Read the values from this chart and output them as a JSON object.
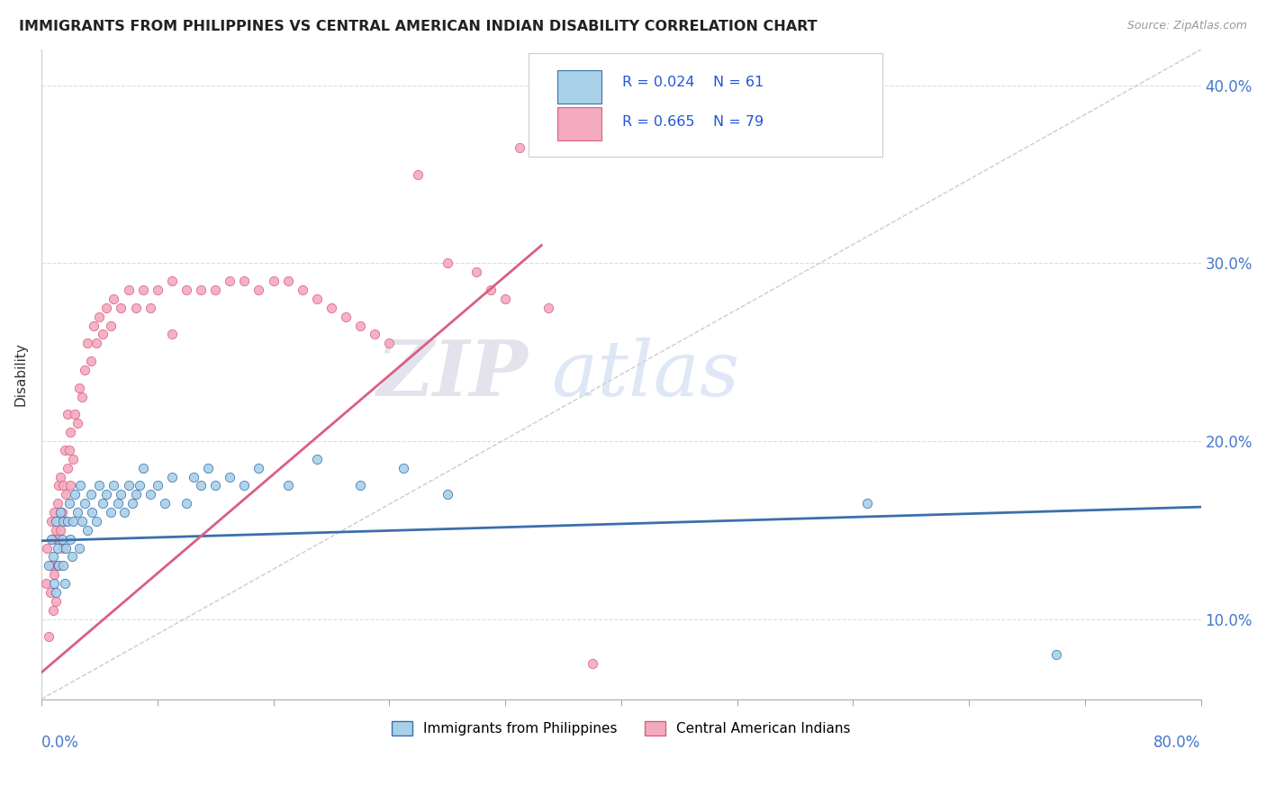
{
  "title": "IMMIGRANTS FROM PHILIPPINES VS CENTRAL AMERICAN INDIAN DISABILITY CORRELATION CHART",
  "source": "Source: ZipAtlas.com",
  "ylabel": "Disability",
  "yticks": [
    0.1,
    0.2,
    0.3,
    0.4
  ],
  "ytick_labels": [
    "10.0%",
    "20.0%",
    "30.0%",
    "40.0%"
  ],
  "xrange": [
    0.0,
    0.8
  ],
  "yrange": [
    0.055,
    0.42
  ],
  "r_philippines": 0.024,
  "n_philippines": 61,
  "r_central": 0.665,
  "n_central": 79,
  "color_philippines": "#A8D0E8",
  "color_central": "#F4AABE",
  "color_philippines_line": "#3B6FAB",
  "color_central_line": "#D95F82",
  "watermark_zip": "ZIP",
  "watermark_atlas": "atlas",
  "legend_label_philippines": "Immigrants from Philippines",
  "legend_label_central": "Central American Indians",
  "phil_trend": [
    0.0,
    0.144,
    0.8,
    0.163
  ],
  "cent_trend": [
    0.0,
    0.07,
    0.345,
    0.31
  ],
  "diag_line": [
    0.0,
    0.055,
    0.8,
    0.42
  ],
  "philippines_x": [
    0.005,
    0.007,
    0.008,
    0.009,
    0.01,
    0.01,
    0.011,
    0.012,
    0.013,
    0.014,
    0.015,
    0.015,
    0.016,
    0.017,
    0.018,
    0.019,
    0.02,
    0.021,
    0.022,
    0.023,
    0.025,
    0.026,
    0.027,
    0.028,
    0.03,
    0.032,
    0.034,
    0.035,
    0.038,
    0.04,
    0.042,
    0.045,
    0.048,
    0.05,
    0.053,
    0.055,
    0.057,
    0.06,
    0.063,
    0.065,
    0.068,
    0.07,
    0.075,
    0.08,
    0.085,
    0.09,
    0.1,
    0.105,
    0.11,
    0.115,
    0.12,
    0.13,
    0.14,
    0.15,
    0.17,
    0.19,
    0.22,
    0.25,
    0.28,
    0.57,
    0.7
  ],
  "philippines_y": [
    0.13,
    0.145,
    0.135,
    0.12,
    0.115,
    0.155,
    0.14,
    0.13,
    0.16,
    0.145,
    0.13,
    0.155,
    0.12,
    0.14,
    0.155,
    0.165,
    0.145,
    0.135,
    0.155,
    0.17,
    0.16,
    0.14,
    0.175,
    0.155,
    0.165,
    0.15,
    0.17,
    0.16,
    0.155,
    0.175,
    0.165,
    0.17,
    0.16,
    0.175,
    0.165,
    0.17,
    0.16,
    0.175,
    0.165,
    0.17,
    0.175,
    0.185,
    0.17,
    0.175,
    0.165,
    0.18,
    0.165,
    0.18,
    0.175,
    0.185,
    0.175,
    0.18,
    0.175,
    0.185,
    0.175,
    0.19,
    0.175,
    0.185,
    0.17,
    0.165,
    0.08
  ],
  "central_x": [
    0.003,
    0.004,
    0.005,
    0.006,
    0.007,
    0.007,
    0.008,
    0.008,
    0.009,
    0.009,
    0.01,
    0.01,
    0.011,
    0.011,
    0.012,
    0.012,
    0.013,
    0.013,
    0.014,
    0.015,
    0.015,
    0.016,
    0.016,
    0.017,
    0.018,
    0.018,
    0.019,
    0.02,
    0.02,
    0.022,
    0.023,
    0.025,
    0.026,
    0.028,
    0.03,
    0.032,
    0.034,
    0.036,
    0.038,
    0.04,
    0.042,
    0.045,
    0.048,
    0.05,
    0.055,
    0.06,
    0.065,
    0.07,
    0.075,
    0.08,
    0.09,
    0.1,
    0.11,
    0.12,
    0.13,
    0.14,
    0.15,
    0.16,
    0.17,
    0.18,
    0.19,
    0.2,
    0.21,
    0.22,
    0.23,
    0.24,
    0.26,
    0.28,
    0.3,
    0.31,
    0.32,
    0.33,
    0.35,
    0.36,
    0.37,
    0.38,
    0.4,
    0.42,
    0.09
  ],
  "central_y": [
    0.12,
    0.14,
    0.09,
    0.115,
    0.13,
    0.155,
    0.105,
    0.145,
    0.125,
    0.16,
    0.11,
    0.15,
    0.13,
    0.165,
    0.145,
    0.175,
    0.15,
    0.18,
    0.16,
    0.14,
    0.175,
    0.155,
    0.195,
    0.17,
    0.185,
    0.215,
    0.195,
    0.175,
    0.205,
    0.19,
    0.215,
    0.21,
    0.23,
    0.225,
    0.24,
    0.255,
    0.245,
    0.265,
    0.255,
    0.27,
    0.26,
    0.275,
    0.265,
    0.28,
    0.275,
    0.285,
    0.275,
    0.285,
    0.275,
    0.285,
    0.29,
    0.285,
    0.285,
    0.285,
    0.29,
    0.29,
    0.285,
    0.29,
    0.29,
    0.285,
    0.28,
    0.275,
    0.27,
    0.265,
    0.26,
    0.255,
    0.35,
    0.3,
    0.295,
    0.285,
    0.28,
    0.365,
    0.275,
    0.37,
    0.38,
    0.075,
    0.38,
    0.37,
    0.26
  ]
}
